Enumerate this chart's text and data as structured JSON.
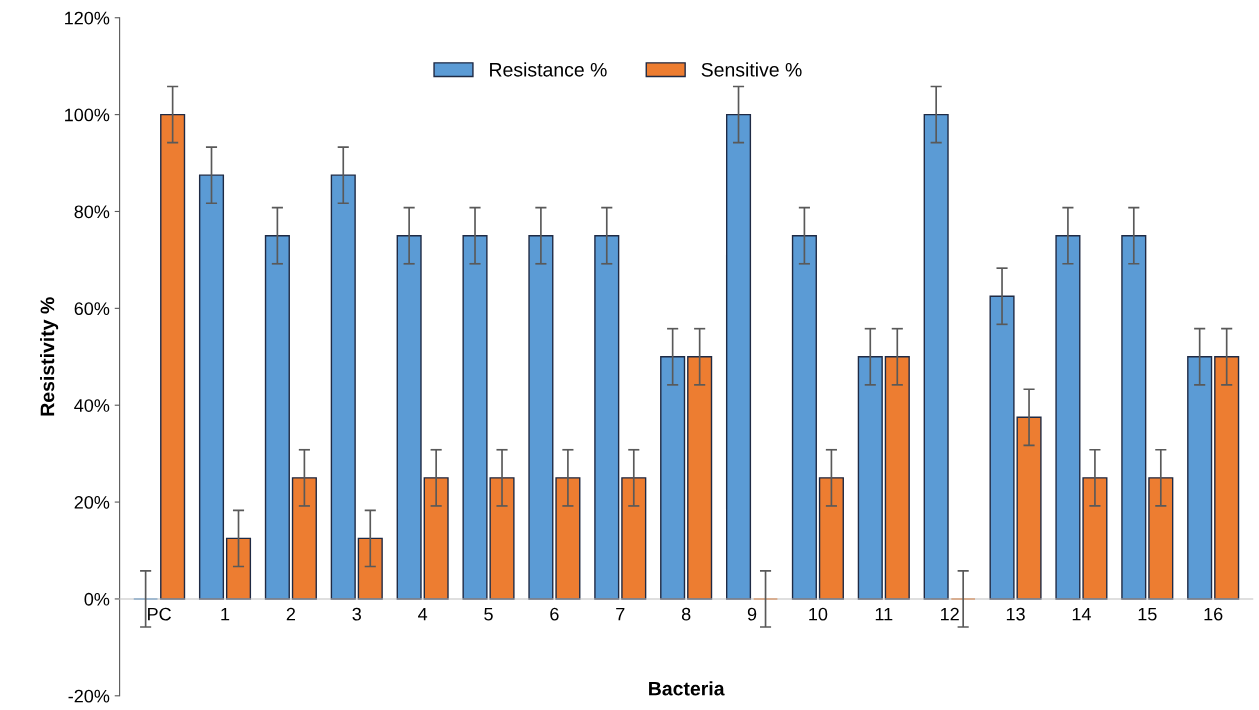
{
  "chart_data": {
    "type": "bar",
    "xlabel": "Bacteria",
    "ylabel": "Resistivity %",
    "categories": [
      "PC",
      "1",
      "2",
      "3",
      "4",
      "5",
      "6",
      "7",
      "8",
      "9",
      "10",
      "11",
      "12",
      "13",
      "14",
      "15",
      "16"
    ],
    "series": [
      {
        "name": "Resistance %",
        "color": "#5b9bd5",
        "values": [
          0,
          87.5,
          75,
          87.5,
          75,
          75,
          75,
          75,
          50,
          100,
          75,
          50,
          100,
          62.5,
          75,
          75,
          50
        ],
        "errors": [
          5.8,
          5.8,
          5.8,
          5.8,
          5.8,
          5.8,
          5.8,
          5.8,
          5.8,
          5.8,
          5.8,
          5.8,
          5.8,
          5.8,
          5.8,
          5.8,
          5.8
        ]
      },
      {
        "name": "Sensitive %",
        "color": "#ed7d31",
        "values": [
          100,
          12.5,
          25,
          12.5,
          25,
          25,
          25,
          25,
          50,
          0,
          25,
          50,
          0,
          37.5,
          25,
          25,
          50
        ],
        "errors": [
          5.8,
          5.8,
          5.8,
          5.8,
          5.8,
          5.8,
          5.8,
          5.8,
          5.8,
          5.8,
          5.8,
          5.8,
          5.8,
          5.8,
          5.8,
          5.8,
          5.8
        ]
      }
    ],
    "ylim": [
      -20,
      120
    ],
    "yticks": [
      {
        "value": -20,
        "label": "-20%"
      },
      {
        "value": 0,
        "label": "0%"
      },
      {
        "value": 20,
        "label": "20%"
      },
      {
        "value": 40,
        "label": "40%"
      },
      {
        "value": 60,
        "label": "60%"
      },
      {
        "value": 80,
        "label": "80%"
      },
      {
        "value": 100,
        "label": "100%"
      },
      {
        "value": 120,
        "label": "120%"
      }
    ],
    "legend": "top",
    "grid": false
  }
}
